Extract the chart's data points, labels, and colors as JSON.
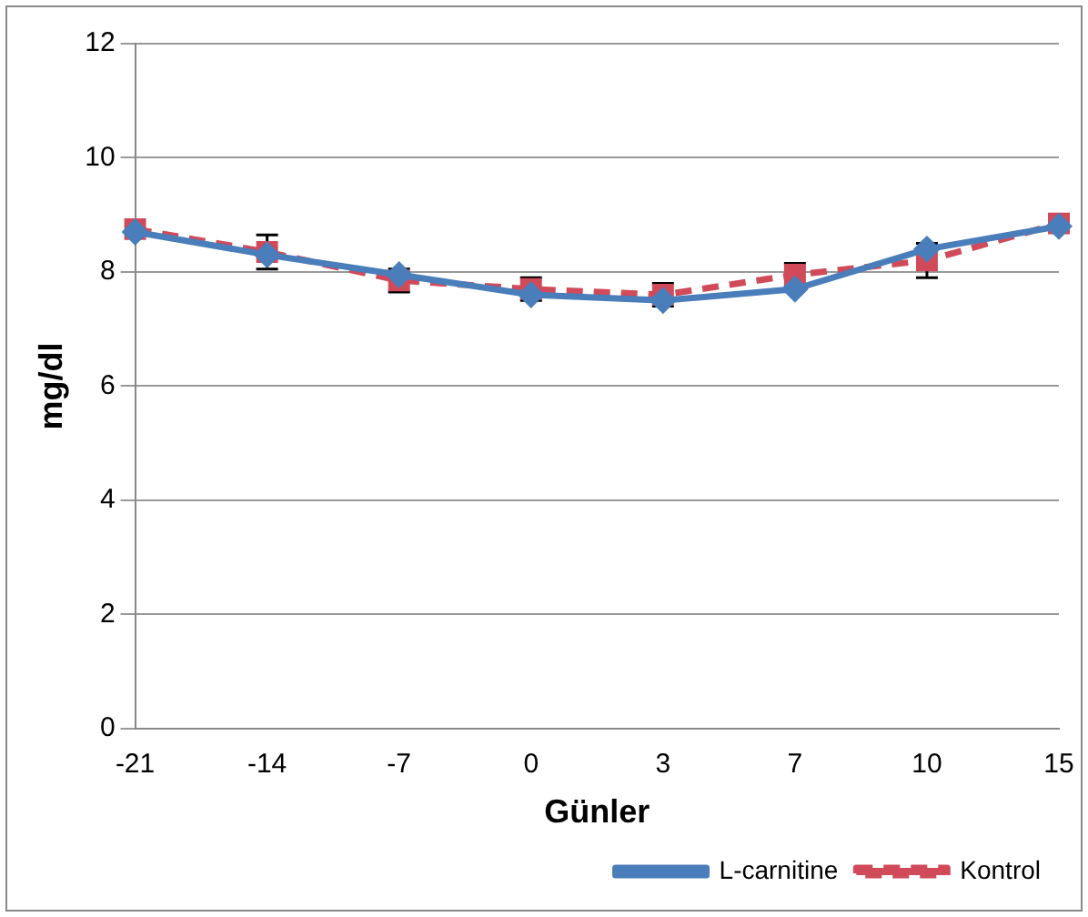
{
  "chart_data": {
    "type": "line",
    "xlabel": "Günler",
    "ylabel": "mg/dl",
    "categories": [
      "-21",
      "-14",
      "-7",
      "0",
      "3",
      "7",
      "10",
      "15"
    ],
    "series": [
      {
        "name": "L-carnitine",
        "color": "#4a7ebb",
        "marker": "diamond",
        "line_style": "solid",
        "values": [
          8.7,
          8.3,
          7.95,
          7.6,
          7.5,
          7.7,
          8.4,
          8.8
        ]
      },
      {
        "name": "Kontrol",
        "color": "#d04a5a",
        "marker": "square",
        "line_style": "dashed",
        "values": [
          8.75,
          8.35,
          7.85,
          7.7,
          7.6,
          7.95,
          8.2,
          8.85
        ],
        "errors": [
          null,
          0.3,
          0.2,
          0.2,
          0.2,
          0.2,
          0.3,
          null
        ]
      }
    ],
    "ylim": [
      0,
      12
    ],
    "yticks": [
      0,
      2,
      4,
      6,
      8,
      10,
      12
    ],
    "grid": "y",
    "legend": "bottom right"
  }
}
